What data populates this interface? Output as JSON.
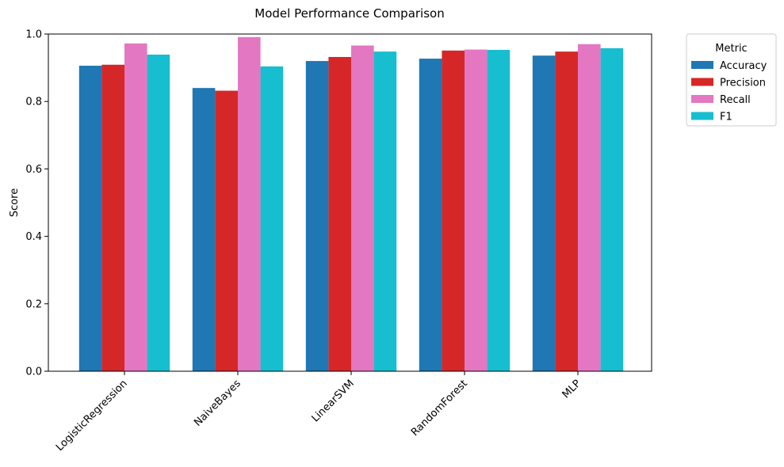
{
  "chart_data": {
    "type": "bar",
    "title": "Model Performance Comparison",
    "xlabel": "",
    "ylabel": "Score",
    "ylim": [
      0,
      1.0
    ],
    "yticks": [
      "0.0",
      "0.2",
      "0.4",
      "0.6",
      "0.8",
      "1.0"
    ],
    "categories": [
      "LogisticRegression",
      "NaiveBayes",
      "LinearSVM",
      "RandomForest",
      "MLP"
    ],
    "series": [
      {
        "name": "Accuracy",
        "color": "#1f77b4",
        "values": [
          0.906,
          0.84,
          0.92,
          0.927,
          0.936
        ]
      },
      {
        "name": "Precision",
        "color": "#d62728",
        "values": [
          0.909,
          0.832,
          0.932,
          0.951,
          0.948
        ]
      },
      {
        "name": "Recall",
        "color": "#e377c2",
        "values": [
          0.972,
          0.991,
          0.966,
          0.954,
          0.97
        ]
      },
      {
        "name": "F1",
        "color": "#17becf",
        "values": [
          0.939,
          0.904,
          0.948,
          0.953,
          0.958
        ]
      }
    ],
    "legend": {
      "title": "Metric",
      "placement": "outside-upper-right"
    },
    "grid": false
  }
}
